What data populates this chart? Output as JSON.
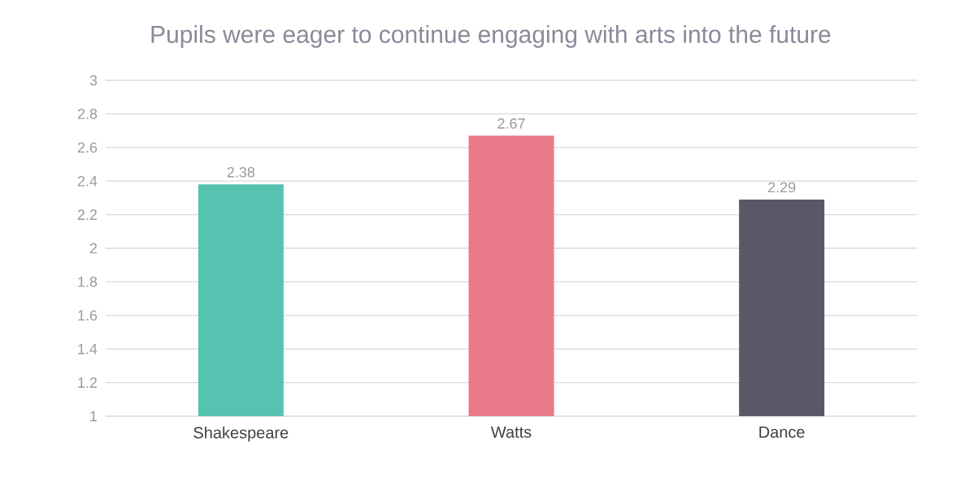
{
  "chart_data": {
    "type": "bar",
    "title": "Pupils were eager to continue engaging with arts into the future",
    "categories": [
      "Shakespeare",
      "Watts",
      "Dance"
    ],
    "values": [
      2.38,
      2.67,
      2.29
    ],
    "colors": [
      "#56c3b0",
      "#e87a8a",
      "#5c5766"
    ],
    "ylim": [
      1,
      3
    ],
    "yticks": [
      1,
      1.2,
      1.4,
      1.6,
      1.8,
      2,
      2.2,
      2.4,
      2.6,
      2.8,
      3
    ],
    "grid": "y",
    "data_labels": true
  }
}
